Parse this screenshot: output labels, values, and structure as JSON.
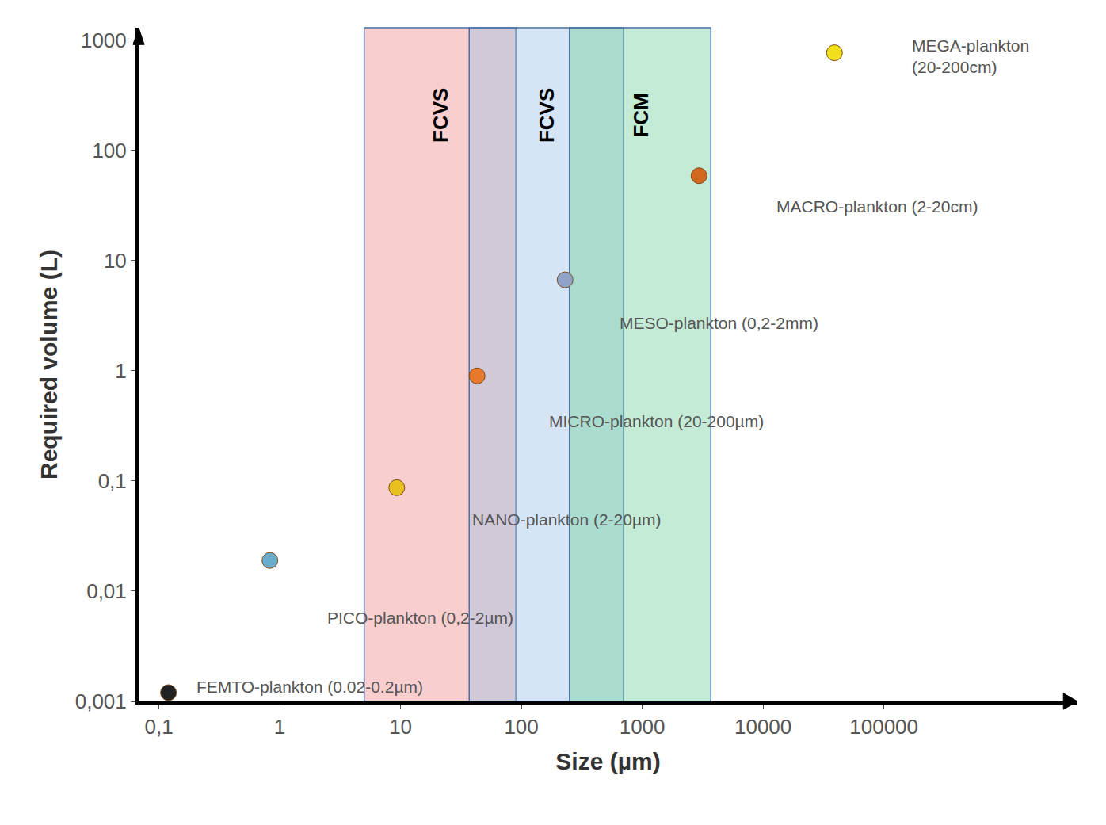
{
  "chart_data": {
    "type": "scatter",
    "log": true,
    "grid": false,
    "x_label": "Size (µm)",
    "y_label": "Required volume (L)",
    "xlim": [
      0.068,
      4000000
    ],
    "ylim": [
      0.001,
      1300
    ],
    "xticks": [
      {
        "value": 0.1,
        "label": "0,1"
      },
      1,
      10,
      100,
      1000,
      10000,
      100000
    ],
    "yticks": [
      {
        "value": 0.001,
        "label": "0,001"
      },
      {
        "value": 0.01,
        "label": "0,01"
      },
      {
        "value": 0.1,
        "label": "0,1"
      },
      1,
      10,
      100,
      1000
    ],
    "bands": [
      {
        "label": "FCVS",
        "x0": 5,
        "x1": 90,
        "color": "#f08a8a"
      },
      {
        "label": "FCVS",
        "x0": 37,
        "x1": 700,
        "color": "#9cc0e6"
      },
      {
        "label": "FCM",
        "x0": 250,
        "x1": 3700,
        "color": "#6fcf9a"
      }
    ],
    "groups": [
      {
        "label": "MEGA-plankton\n(20-200cm)",
        "label_x": 166000,
        "label_y": 716,
        "x": 39000,
        "y": 770,
        "color": "#f2e01e"
      },
      {
        "label": "MACRO-plankton (2-20cm)",
        "label_x": 12600,
        "label_y": 31,
        "x": 2950,
        "y": 59,
        "color": "#d2691e"
      },
      {
        "label": "MESO-plankton (0,2-2mm)",
        "label_x": 630,
        "label_y": 2.7,
        "x": 230,
        "y": 6.7,
        "color": "#8fa3c8"
      },
      {
        "label": "MICRO-plankton (20-200µm)",
        "label_x": 165,
        "label_y": 0.35,
        "x": 43,
        "y": 0.9,
        "color": "#e8792a"
      },
      {
        "label": "NANO-plankton (2-20µm)",
        "label_x": 38,
        "label_y": 0.045,
        "x": 9.3,
        "y": 0.087,
        "color": "#e8c020"
      },
      {
        "label": "PICO-plankton (0,2-2µm)",
        "label_x": 2.4,
        "label_y": 0.0057,
        "x": 0.83,
        "y": 0.019,
        "color": "#6aaccc"
      },
      {
        "label": "FEMTO-plankton (0.02-0.2µm)",
        "label_x": 0.2,
        "label_y": 0.00135,
        "x": 0.12,
        "y": 0.0012,
        "color": "#222222"
      }
    ]
  }
}
